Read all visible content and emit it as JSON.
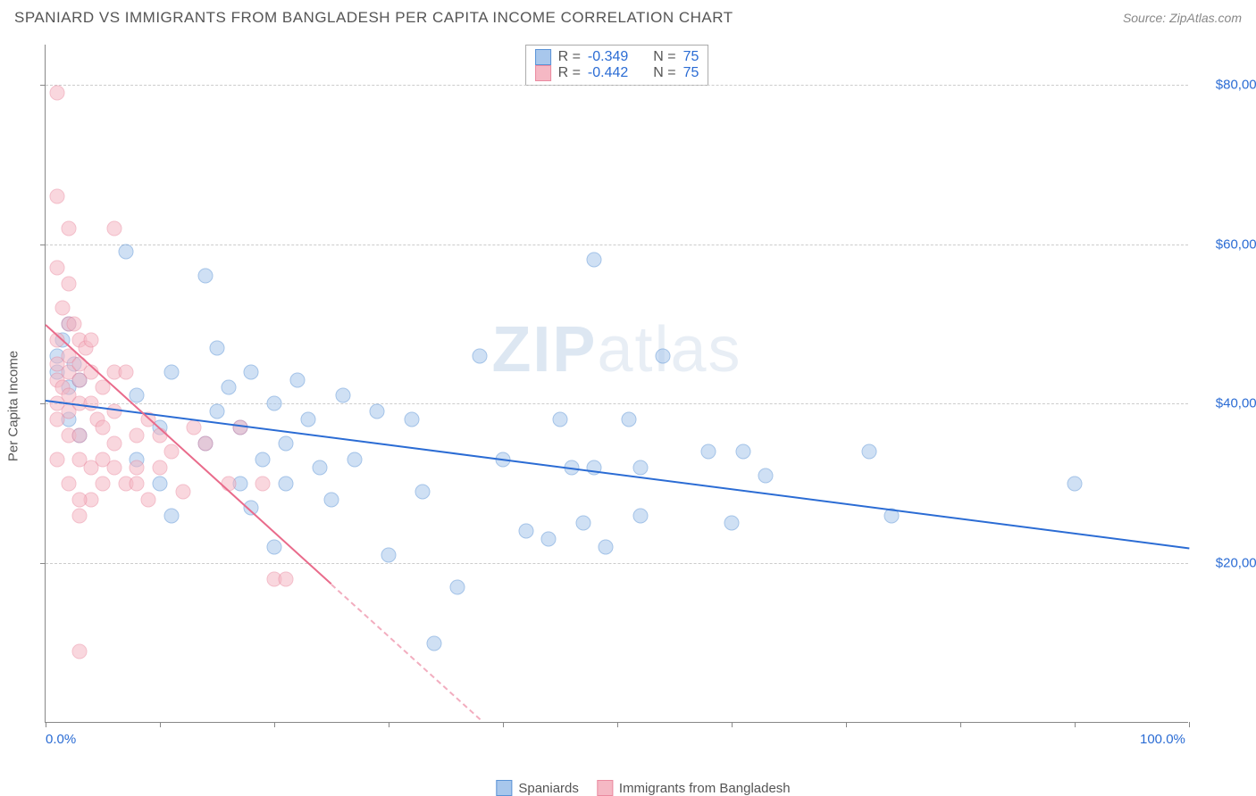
{
  "header": {
    "title": "SPANIARD VS IMMIGRANTS FROM BANGLADESH PER CAPITA INCOME CORRELATION CHART",
    "source_label": "Source: ZipAtlas.com"
  },
  "watermark": {
    "left": "ZIP",
    "right": "atlas"
  },
  "chart": {
    "type": "scatter",
    "ylabel": "Per Capita Income",
    "xlim": [
      0,
      100
    ],
    "ylim": [
      0,
      85000
    ],
    "x_ticks": [
      0,
      10,
      20,
      30,
      40,
      50,
      60,
      70,
      80,
      90,
      100
    ],
    "x_tick_labels_shown": {
      "0": "0.0%",
      "100": "100.0%"
    },
    "y_ticks": [
      20000,
      40000,
      60000,
      80000
    ],
    "y_tick_labels": [
      "$20,000",
      "$40,000",
      "$60,000",
      "$80,000"
    ],
    "grid_color": "#cccccc",
    "axis_color": "#888888",
    "background_color": "#ffffff",
    "tick_label_color": "#2b6cd4",
    "point_radius": 8.5,
    "point_opacity": 0.55,
    "series": [
      {
        "name": "Spaniards",
        "color_fill": "#a8c7ec",
        "color_stroke": "#5a93d6",
        "r_label": "R = ",
        "r_value": "-0.349",
        "n_label": "N = ",
        "n_value": "75",
        "trend": {
          "x1": 0,
          "y1": 40500,
          "x2": 100,
          "y2": 22000,
          "color": "#2b6cd4",
          "dash": false
        },
        "points": [
          [
            1,
            44000
          ],
          [
            1,
            46000
          ],
          [
            1.5,
            48000
          ],
          [
            2,
            42000
          ],
          [
            2,
            50000
          ],
          [
            2,
            38000
          ],
          [
            2.5,
            45000
          ],
          [
            3,
            43000
          ],
          [
            3,
            36000
          ],
          [
            7,
            59000
          ],
          [
            8,
            41000
          ],
          [
            8,
            33000
          ],
          [
            10,
            37000
          ],
          [
            10,
            30000
          ],
          [
            11,
            44000
          ],
          [
            11,
            26000
          ],
          [
            14,
            56000
          ],
          [
            14,
            35000
          ],
          [
            15,
            39000
          ],
          [
            15,
            47000
          ],
          [
            16,
            42000
          ],
          [
            17,
            30000
          ],
          [
            17,
            37000
          ],
          [
            18,
            44000
          ],
          [
            18,
            27000
          ],
          [
            19,
            33000
          ],
          [
            20,
            40000
          ],
          [
            20,
            22000
          ],
          [
            21,
            30000
          ],
          [
            21,
            35000
          ],
          [
            22,
            43000
          ],
          [
            23,
            38000
          ],
          [
            24,
            32000
          ],
          [
            25,
            28000
          ],
          [
            26,
            41000
          ],
          [
            27,
            33000
          ],
          [
            29,
            39000
          ],
          [
            30,
            21000
          ],
          [
            32,
            38000
          ],
          [
            33,
            29000
          ],
          [
            34,
            10000
          ],
          [
            36,
            17000
          ],
          [
            38,
            46000
          ],
          [
            40,
            33000
          ],
          [
            42,
            24000
          ],
          [
            44,
            23000
          ],
          [
            45,
            38000
          ],
          [
            46,
            32000
          ],
          [
            47,
            25000
          ],
          [
            48,
            58000
          ],
          [
            48,
            32000
          ],
          [
            49,
            22000
          ],
          [
            51,
            38000
          ],
          [
            52,
            32000
          ],
          [
            52,
            26000
          ],
          [
            54,
            46000
          ],
          [
            58,
            34000
          ],
          [
            60,
            25000
          ],
          [
            61,
            34000
          ],
          [
            63,
            31000
          ],
          [
            72,
            34000
          ],
          [
            74,
            26000
          ],
          [
            90,
            30000
          ]
        ]
      },
      {
        "name": "Immigrants from Bangladesh",
        "color_fill": "#f5b8c4",
        "color_stroke": "#ea8aa0",
        "r_label": "R = ",
        "r_value": "-0.442",
        "n_label": "N = ",
        "n_value": "75",
        "trend": {
          "x1": 0,
          "y1": 50000,
          "x2": 25,
          "y2": 17500,
          "color": "#e96b8b",
          "dash_extend_to_x": 38,
          "dash": true
        },
        "points": [
          [
            1,
            79000
          ],
          [
            1,
            66000
          ],
          [
            2,
            62000
          ],
          [
            1,
            57000
          ],
          [
            1.5,
            52000
          ],
          [
            2,
            55000
          ],
          [
            2,
            50000
          ],
          [
            1,
            48000
          ],
          [
            1,
            45000
          ],
          [
            2,
            46000
          ],
          [
            2,
            44000
          ],
          [
            1,
            43000
          ],
          [
            1.5,
            42000
          ],
          [
            2,
            41000
          ],
          [
            1,
            40000
          ],
          [
            2,
            39000
          ],
          [
            1,
            38000
          ],
          [
            2.5,
            50000
          ],
          [
            3,
            48000
          ],
          [
            3,
            45000
          ],
          [
            2,
            36000
          ],
          [
            3,
            43000
          ],
          [
            3,
            40000
          ],
          [
            3.5,
            47000
          ],
          [
            4,
            44000
          ],
          [
            4,
            40000
          ],
          [
            3,
            36000
          ],
          [
            4,
            48000
          ],
          [
            4.5,
            38000
          ],
          [
            5,
            42000
          ],
          [
            5,
            37000
          ],
          [
            5,
            33000
          ],
          [
            6,
            62000
          ],
          [
            6,
            44000
          ],
          [
            6,
            39000
          ],
          [
            6,
            35000
          ],
          [
            7,
            44000
          ],
          [
            3,
            33000
          ],
          [
            4,
            32000
          ],
          [
            5,
            30000
          ],
          [
            4,
            28000
          ],
          [
            3,
            28000
          ],
          [
            3,
            26000
          ],
          [
            1,
            33000
          ],
          [
            2,
            30000
          ],
          [
            6,
            32000
          ],
          [
            7,
            30000
          ],
          [
            8,
            36000
          ],
          [
            8,
            32000
          ],
          [
            8,
            30000
          ],
          [
            9,
            38000
          ],
          [
            9,
            28000
          ],
          [
            10,
            36000
          ],
          [
            10,
            32000
          ],
          [
            11,
            34000
          ],
          [
            12,
            29000
          ],
          [
            13,
            37000
          ],
          [
            14,
            35000
          ],
          [
            16,
            30000
          ],
          [
            17,
            37000
          ],
          [
            19,
            30000
          ],
          [
            20,
            18000
          ],
          [
            21,
            18000
          ],
          [
            3,
            9000
          ]
        ]
      }
    ],
    "legend_bottom": {
      "items": [
        {
          "label": "Spaniards",
          "fill": "#a8c7ec",
          "stroke": "#5a93d6"
        },
        {
          "label": "Immigrants from Bangladesh",
          "fill": "#f5b8c4",
          "stroke": "#ea8aa0"
        }
      ]
    }
  }
}
